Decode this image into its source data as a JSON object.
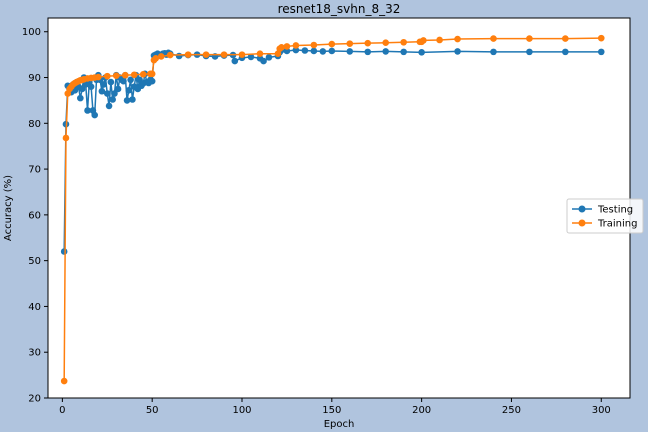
{
  "chart_data": {
    "type": "line",
    "title": "resnet18_svhn_8_32",
    "xlabel": "Epoch",
    "ylabel": "Accuracy (%)",
    "xlim": [
      -8,
      316
    ],
    "ylim": [
      20,
      103
    ],
    "xticks": [
      0,
      50,
      100,
      150,
      200,
      250,
      300
    ],
    "yticks": [
      20,
      30,
      40,
      50,
      60,
      70,
      80,
      90,
      100
    ],
    "grid": false,
    "legend_position": "center-right",
    "series": [
      {
        "name": "Testing",
        "color": "#1f77b4",
        "marker": "circle",
        "x": [
          1,
          2,
          3,
          4,
          5,
          6,
          7,
          8,
          9,
          10,
          11,
          12,
          13,
          14,
          15,
          16,
          17,
          18,
          19,
          20,
          21,
          22,
          23,
          24,
          25,
          26,
          27,
          28,
          29,
          30,
          31,
          32,
          33,
          34,
          35,
          36,
          37,
          38,
          39,
          40,
          41,
          42,
          43,
          44,
          45,
          46,
          47,
          48,
          49,
          50,
          51,
          52,
          53,
          54,
          55,
          56,
          57,
          58,
          59,
          60,
          65,
          70,
          75,
          80,
          85,
          90,
          95,
          96,
          100,
          105,
          110,
          112,
          115,
          120,
          121,
          122,
          125,
          130,
          135,
          140,
          145,
          150,
          160,
          170,
          180,
          190,
          200,
          220,
          240,
          260,
          280,
          300
        ],
        "y": [
          52,
          79.8,
          88.2,
          87.5,
          86.8,
          88.5,
          87.2,
          89,
          88,
          85.5,
          87.5,
          90,
          88.5,
          82.8,
          89,
          88,
          82.8,
          81.8,
          89.5,
          90.5,
          89.5,
          87,
          88.5,
          90,
          86.5,
          83.8,
          89,
          85.2,
          86.5,
          90.5,
          87.5,
          90,
          89.5,
          89.2,
          90.5,
          85,
          87.2,
          89.5,
          85.2,
          88,
          90.5,
          87.5,
          89.5,
          88.2,
          88.7,
          90.8,
          89,
          88.8,
          89.5,
          89.2,
          94.8,
          95,
          95.2,
          95,
          94.8,
          95.2,
          95.3,
          95,
          95.4,
          95.2,
          94.7,
          94.9,
          95,
          94.7,
          94.6,
          94.8,
          94.9,
          93.6,
          94.3,
          94.5,
          94.2,
          93.6,
          94.4,
          94.7,
          95.5,
          96,
          95.8,
          96,
          95.9,
          95.8,
          95.7,
          95.8,
          95.7,
          95.6,
          95.7,
          95.6,
          95.5,
          95.7,
          95.6,
          95.6,
          95.6,
          95.6
        ]
      },
      {
        "name": "Training",
        "color": "#ff7f0e",
        "marker": "circle",
        "x": [
          1,
          2,
          3,
          4,
          5,
          6,
          7,
          8,
          9,
          10,
          11,
          12,
          14,
          16,
          18,
          20,
          25,
          30,
          35,
          40,
          45,
          49,
          50,
          51,
          52,
          55,
          60,
          70,
          80,
          90,
          100,
          110,
          120,
          121,
          122,
          125,
          130,
          140,
          150,
          160,
          170,
          180,
          190,
          199,
          200,
          201,
          210,
          220,
          240,
          260,
          280,
          300
        ],
        "y": [
          23.7,
          76.8,
          86.5,
          87.5,
          88,
          88.5,
          88.8,
          89,
          89.2,
          89.4,
          89.5,
          89.6,
          89.8,
          89.9,
          90,
          90.1,
          90.3,
          90.4,
          90.5,
          90.6,
          90.7,
          90.8,
          90.8,
          93.8,
          94.2,
          94.6,
          94.9,
          95,
          95,
          95,
          95,
          95.2,
          95.2,
          96.3,
          96.6,
          96.8,
          97,
          97.1,
          97.3,
          97.4,
          97.5,
          97.6,
          97.7,
          97.8,
          97.8,
          98.1,
          98.2,
          98.4,
          98.5,
          98.5,
          98.5,
          98.6
        ]
      }
    ]
  }
}
